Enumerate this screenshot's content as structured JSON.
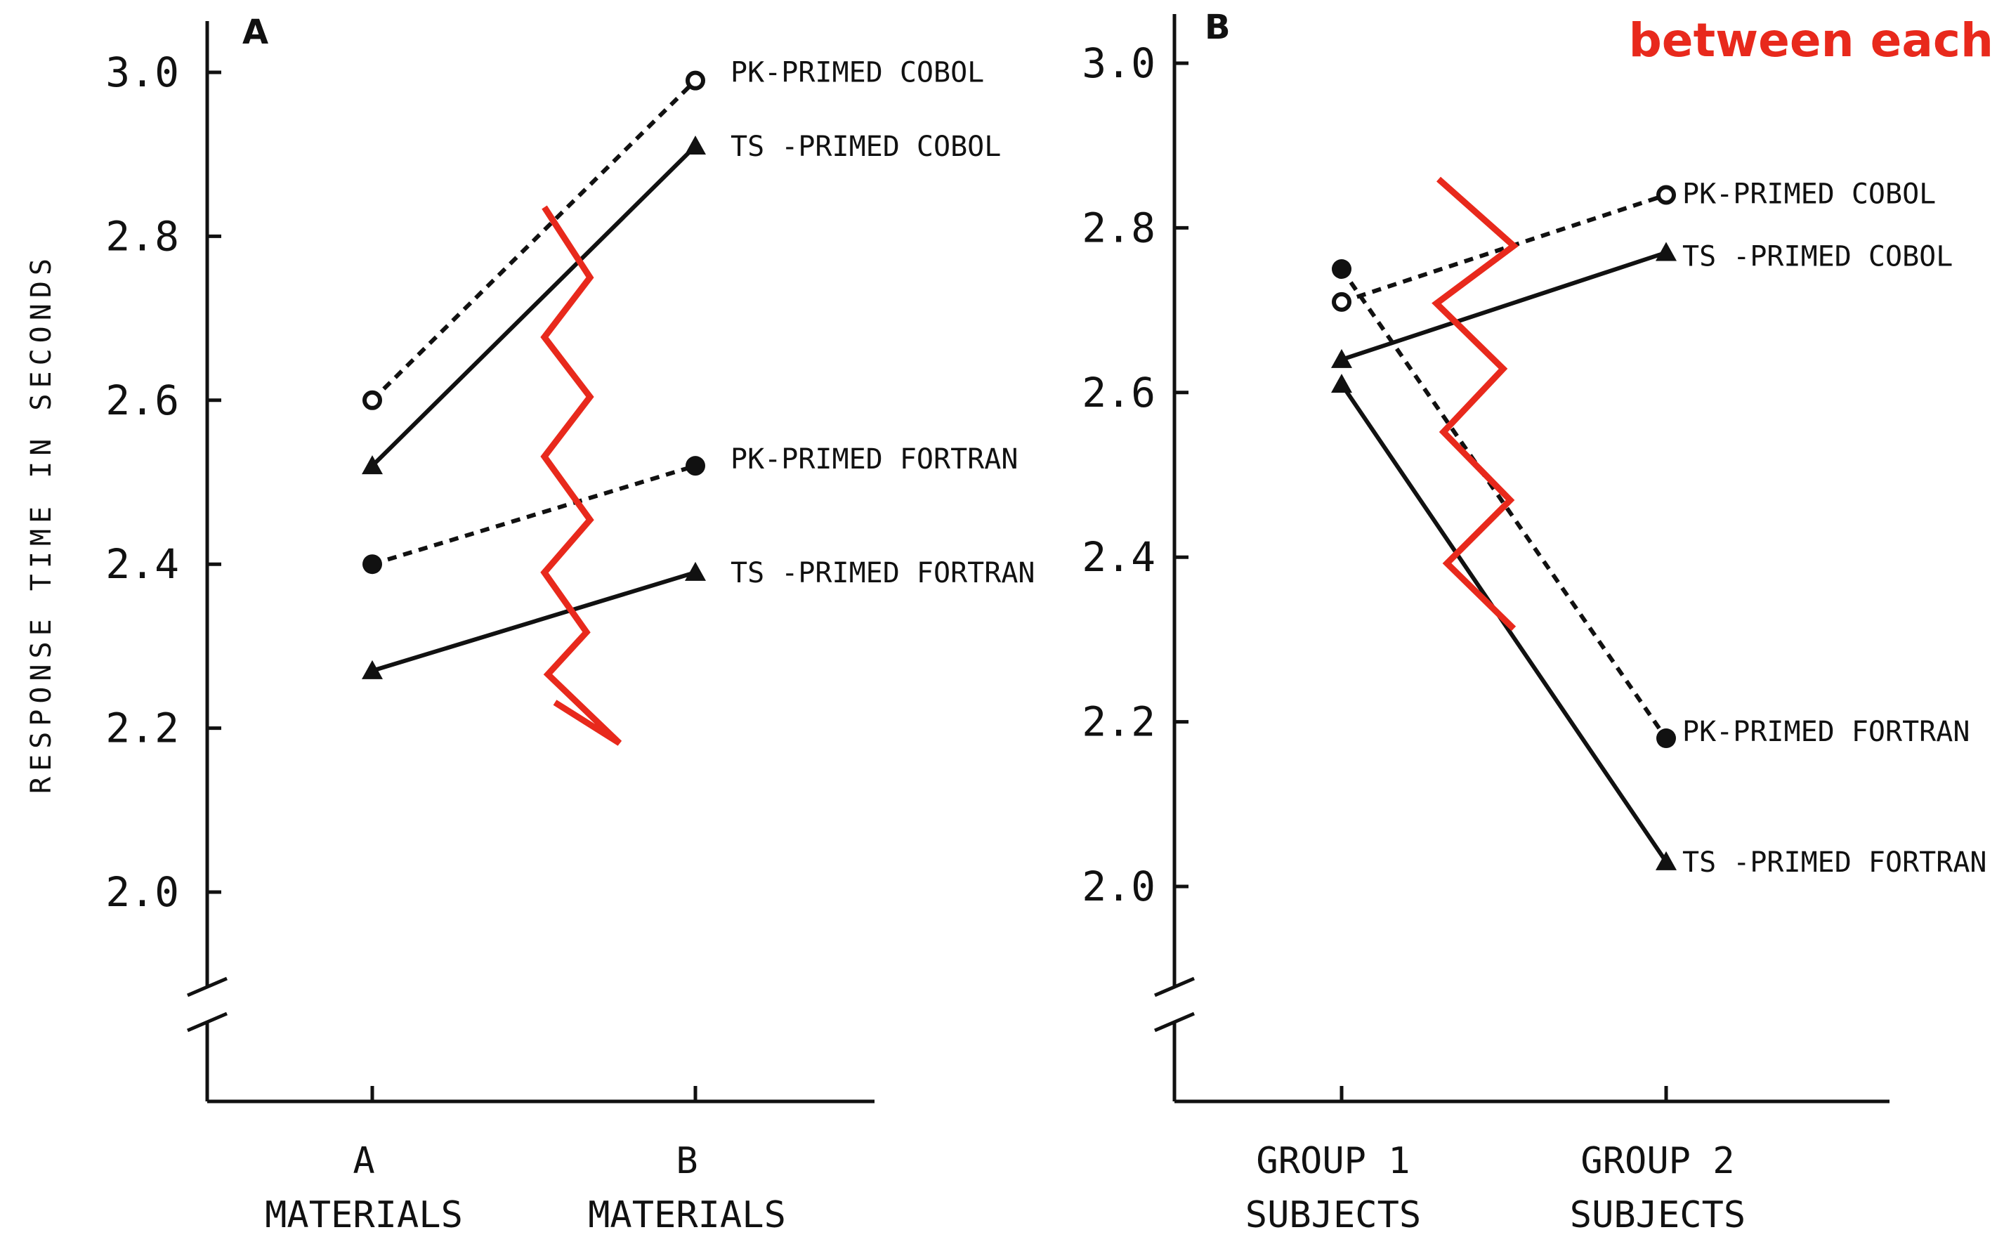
{
  "overlay_text": "between each",
  "colors": {
    "ink": "#111111",
    "overlay": "#e8291c"
  },
  "chart_data": [
    {
      "type": "line",
      "panel": "A",
      "ylabel": "RESPONSE TIME IN SECONDS",
      "ylim": [
        2.0,
        3.0
      ],
      "yticks": [
        "3.0",
        "2.8",
        "2.6",
        "2.4",
        "2.2",
        "2.0"
      ],
      "axis_break": true,
      "categories": [
        [
          "A",
          "MATERIALS"
        ],
        [
          "B",
          "MATERIALS"
        ]
      ],
      "series": [
        {
          "name": "PK-PRIMED COBOL",
          "values": [
            2.6,
            2.99
          ],
          "marker": "open-circle",
          "line": "dashed"
        },
        {
          "name": "TS -PRIMED COBOL",
          "values": [
            2.52,
            2.91
          ],
          "marker": "triangle",
          "line": "solid"
        },
        {
          "name": "PK-PRIMED FORTRAN",
          "values": [
            2.4,
            2.52
          ],
          "marker": "filled-circle",
          "line": "dashed"
        },
        {
          "name": "TS -PRIMED FORTRAN",
          "values": [
            2.27,
            2.39
          ],
          "marker": "triangle",
          "line": "solid"
        }
      ]
    },
    {
      "type": "line",
      "panel": "B",
      "ylabel": "",
      "ylim": [
        2.0,
        3.0
      ],
      "yticks": [
        "3.0",
        "2.8",
        "2.6",
        "2.4",
        "2.2",
        "2.0"
      ],
      "axis_break": true,
      "categories": [
        [
          "GROUP 1",
          "SUBJECTS"
        ],
        [
          "GROUP 2",
          "SUBJECTS"
        ]
      ],
      "series": [
        {
          "name": "PK-PRIMED COBOL",
          "values": [
            2.71,
            2.84
          ],
          "marker": "open-circle",
          "line": "dashed"
        },
        {
          "name": "TS -PRIMED COBOL",
          "values": [
            2.64,
            2.77
          ],
          "marker": "triangle",
          "line": "solid"
        },
        {
          "name": "PK-PRIMED FORTRAN",
          "values": [
            2.75,
            2.18
          ],
          "marker": "filled-circle",
          "line": "dashed"
        },
        {
          "name": "TS -PRIMED FORTRAN",
          "values": [
            2.61,
            2.03
          ],
          "marker": "triangle",
          "line": "solid"
        }
      ]
    }
  ]
}
